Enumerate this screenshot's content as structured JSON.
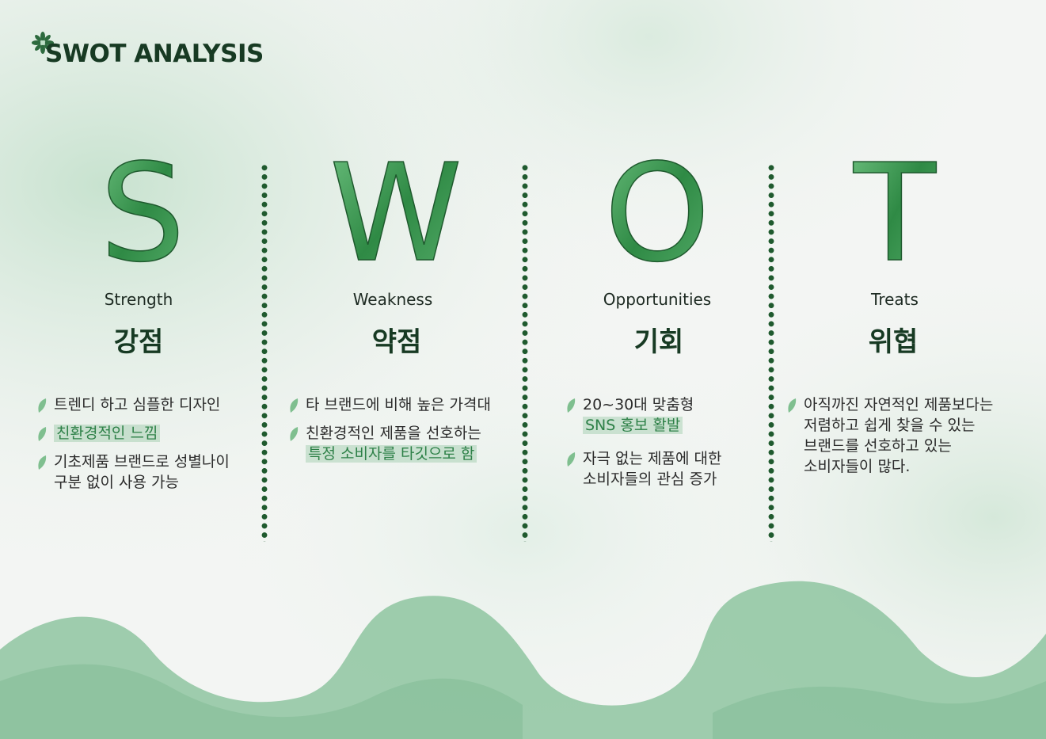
{
  "title": "SWOT ANALYSIS",
  "colors": {
    "accent": "#2d8047",
    "dark_green": "#173a23",
    "wave": "#8dc4a0",
    "highlight": "#cfe6d6"
  },
  "columns": [
    {
      "letter": "S",
      "english": "Strength",
      "korean": "강점",
      "bullets": [
        {
          "lines": [
            "트렌디 하고 심플한 디자인"
          ]
        },
        {
          "lines": [
            "친환경적인 느낌"
          ],
          "highlight": true
        },
        {
          "lines": [
            "기초제품 브랜드로 성별나이",
            "구분 없이 사용 가능"
          ]
        }
      ]
    },
    {
      "letter": "W",
      "english": "Weakness",
      "korean": "약점",
      "bullets": [
        {
          "lines": [
            "타 브랜드에 비해 높은 가격대"
          ]
        },
        {
          "lines": [
            "친환경적인 제품을 선호하는"
          ],
          "highlight_line": "특정 소비자를 타깃으로 함"
        }
      ]
    },
    {
      "letter": "O",
      "english": "Opportunities",
      "korean": "기회",
      "bullets": [
        {
          "lines": [
            "20~30대 맞춤형"
          ],
          "highlight_line": "SNS 홍보 활발"
        },
        {
          "lines": [
            "자극 없는 제품에 대한",
            "소비자들의 관심 증가"
          ]
        }
      ]
    },
    {
      "letter": "T",
      "english": "Treats",
      "korean": "위협",
      "bullets": [
        {
          "lines": [
            "아직까진 자연적인 제품보다는",
            "저렴하고 쉽게 찾을 수 있는",
            "브랜드를 선호하고 있는",
            "소비자들이 많다."
          ]
        }
      ]
    }
  ],
  "icons": {
    "title_icon": "star-leaf-icon",
    "bullet_icon": "leaf-icon"
  }
}
